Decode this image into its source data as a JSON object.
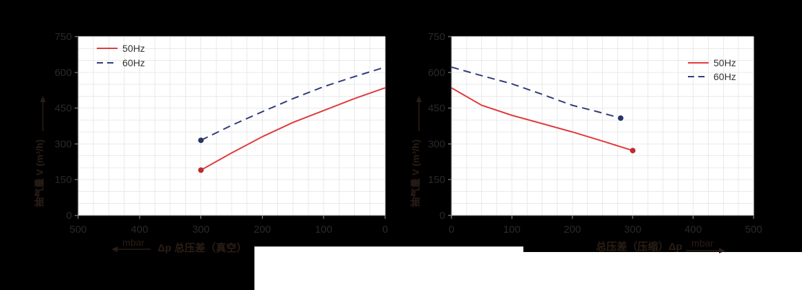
{
  "figure": {
    "description": "Two pump performance curves: pumping volume vs total pressure difference",
    "canvas_bg": "#000000",
    "page_bg": "#ffffff"
  },
  "colors": {
    "line_50hz": "#e03a3a",
    "line_60hz": "#303d78",
    "marker_50hz": "#b92d2f",
    "marker_60hz": "#2a3566",
    "grid": "#e9e9e9",
    "axis": "#9a9a9a",
    "plot_bg": "#ffffff",
    "tick_text": "#2b282c",
    "title_text": "#2b1d16",
    "legend_text": "#333333"
  },
  "legend_labels": [
    "50Hz",
    "60Hz"
  ],
  "chart_data": [
    {
      "type": "line",
      "title": "",
      "xlabel": "Δp 总压差（真空）",
      "x_unit": "mbar",
      "x_arrow": "left",
      "ylabel": "抽气量 V (m³/h)",
      "xlim": [
        500,
        0
      ],
      "ylim": [
        0,
        750
      ],
      "x_ticks": [
        500,
        400,
        300,
        200,
        100,
        0
      ],
      "y_ticks": [
        0,
        150,
        300,
        450,
        600,
        750
      ],
      "grid": {
        "x_step": 25,
        "y_step": 50
      },
      "legend_position": "top-left",
      "series": [
        {
          "name": "50Hz",
          "color_key": "line_50hz",
          "marker_color_key": "marker_50hz",
          "dashed": false,
          "marker_at": "first",
          "points": [
            [
              300,
              190
            ],
            [
              250,
              262
            ],
            [
              200,
              330
            ],
            [
              150,
              390
            ],
            [
              100,
              440
            ],
            [
              50,
              490
            ],
            [
              0,
              535
            ]
          ]
        },
        {
          "name": "60Hz",
          "color_key": "line_60hz",
          "marker_color_key": "marker_60hz",
          "dashed": true,
          "marker_at": "first",
          "points": [
            [
              300,
              315
            ],
            [
              250,
              378
            ],
            [
              200,
              435
            ],
            [
              150,
              490
            ],
            [
              100,
              540
            ],
            [
              50,
              582
            ],
            [
              0,
              622
            ]
          ]
        }
      ]
    },
    {
      "type": "line",
      "title": "",
      "xlabel": "总压差（压缩）Δp",
      "x_unit": "mbar",
      "x_arrow": "right",
      "ylabel": "抽气量 V (m³/h)",
      "xlim": [
        0,
        500
      ],
      "ylim": [
        0,
        750
      ],
      "x_ticks": [
        0,
        100,
        200,
        300,
        400,
        500
      ],
      "y_ticks": [
        0,
        150,
        300,
        450,
        600,
        750
      ],
      "grid": {
        "x_step": 25,
        "y_step": 50
      },
      "legend_position": "top-right",
      "series": [
        {
          "name": "50Hz",
          "color_key": "line_50hz",
          "marker_color_key": "marker_50hz",
          "dashed": false,
          "marker_at": "last",
          "points": [
            [
              0,
              535
            ],
            [
              50,
              462
            ],
            [
              100,
              420
            ],
            [
              150,
              385
            ],
            [
              200,
              350
            ],
            [
              250,
              312
            ],
            [
              300,
              272
            ]
          ]
        },
        {
          "name": "60Hz",
          "color_key": "line_60hz",
          "marker_color_key": "marker_60hz",
          "dashed": true,
          "marker_at": "last",
          "points": [
            [
              0,
              622
            ],
            [
              50,
              586
            ],
            [
              100,
              552
            ],
            [
              150,
              508
            ],
            [
              200,
              462
            ],
            [
              240,
              436
            ],
            [
              280,
              408
            ]
          ]
        }
      ]
    }
  ]
}
